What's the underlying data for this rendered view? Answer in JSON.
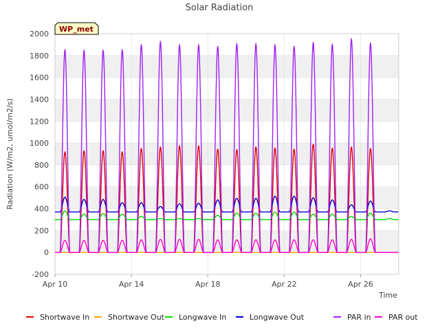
{
  "chart_data": {
    "type": "line",
    "title": "Solar Radiation",
    "xlabel": "Time",
    "ylabel": "Radiation (W/m2, umol/m2/s)",
    "station_badge": "WP_met",
    "ylim": [
      -200,
      2000
    ],
    "yticks": [
      -200,
      0,
      200,
      400,
      600,
      800,
      1000,
      1200,
      1400,
      1600,
      1800,
      2000
    ],
    "xlim": [
      "2023-04-10",
      "2023-04-28"
    ],
    "xticks": [
      {
        "date": "2023-04-10",
        "label": "Apr 10"
      },
      {
        "date": "2023-04-14",
        "label": "Apr 14"
      },
      {
        "date": "2023-04-18",
        "label": "Apr 18"
      },
      {
        "date": "2023-04-22",
        "label": "Apr 22"
      },
      {
        "date": "2023-04-26",
        "label": "Apr 26"
      }
    ],
    "grid": true,
    "legend_position": "bottom",
    "dates": [
      "2023-04-10",
      "2023-04-11",
      "2023-04-12",
      "2023-04-13",
      "2023-04-14",
      "2023-04-15",
      "2023-04-16",
      "2023-04-17",
      "2023-04-18",
      "2023-04-19",
      "2023-04-20",
      "2023-04-21",
      "2023-04-22",
      "2023-04-23",
      "2023-04-24",
      "2023-04-25",
      "2023-04-26",
      "2023-04-27"
    ],
    "series": [
      {
        "name": "Shortwave In",
        "color": "#dd0000",
        "daily_peak": [
          920,
          930,
          930,
          920,
          950,
          965,
          975,
          975,
          945,
          940,
          965,
          955,
          945,
          990,
          955,
          965,
          950,
          0
        ],
        "night_value": 0
      },
      {
        "name": "Shortwave Out",
        "color": "#ffa500",
        "daily_peak": [
          0,
          0,
          0,
          0,
          0,
          0,
          0,
          0,
          0,
          0,
          0,
          0,
          0,
          0,
          0,
          0,
          0,
          0
        ],
        "night_value": 0
      },
      {
        "name": "Longwave In",
        "color": "#00dd00",
        "daily_peak": [
          380,
          350,
          355,
          350,
          330,
          310,
          310,
          310,
          340,
          360,
          360,
          370,
          370,
          350,
          350,
          330,
          360,
          310
        ],
        "night_value": 300
      },
      {
        "name": "Longwave Out",
        "color": "#0000cc",
        "daily_peak": [
          505,
          485,
          485,
          455,
          455,
          420,
          445,
          450,
          480,
          495,
          495,
          515,
          515,
          500,
          480,
          435,
          470,
          380
        ],
        "night_value": 370
      },
      {
        "name": "PAR in",
        "color": "#a020f0",
        "daily_peak": [
          1855,
          1850,
          1850,
          1855,
          1900,
          1930,
          1900,
          1900,
          1885,
          1910,
          1910,
          1900,
          1885,
          1920,
          1905,
          1955,
          1915,
          0
        ],
        "night_value": 0
      },
      {
        "name": "PAR out",
        "color": "#ff00cc",
        "daily_peak": [
          110,
          110,
          110,
          110,
          115,
          120,
          120,
          120,
          115,
          115,
          115,
          115,
          115,
          115,
          115,
          120,
          125,
          0
        ],
        "night_value": 0
      }
    ]
  }
}
